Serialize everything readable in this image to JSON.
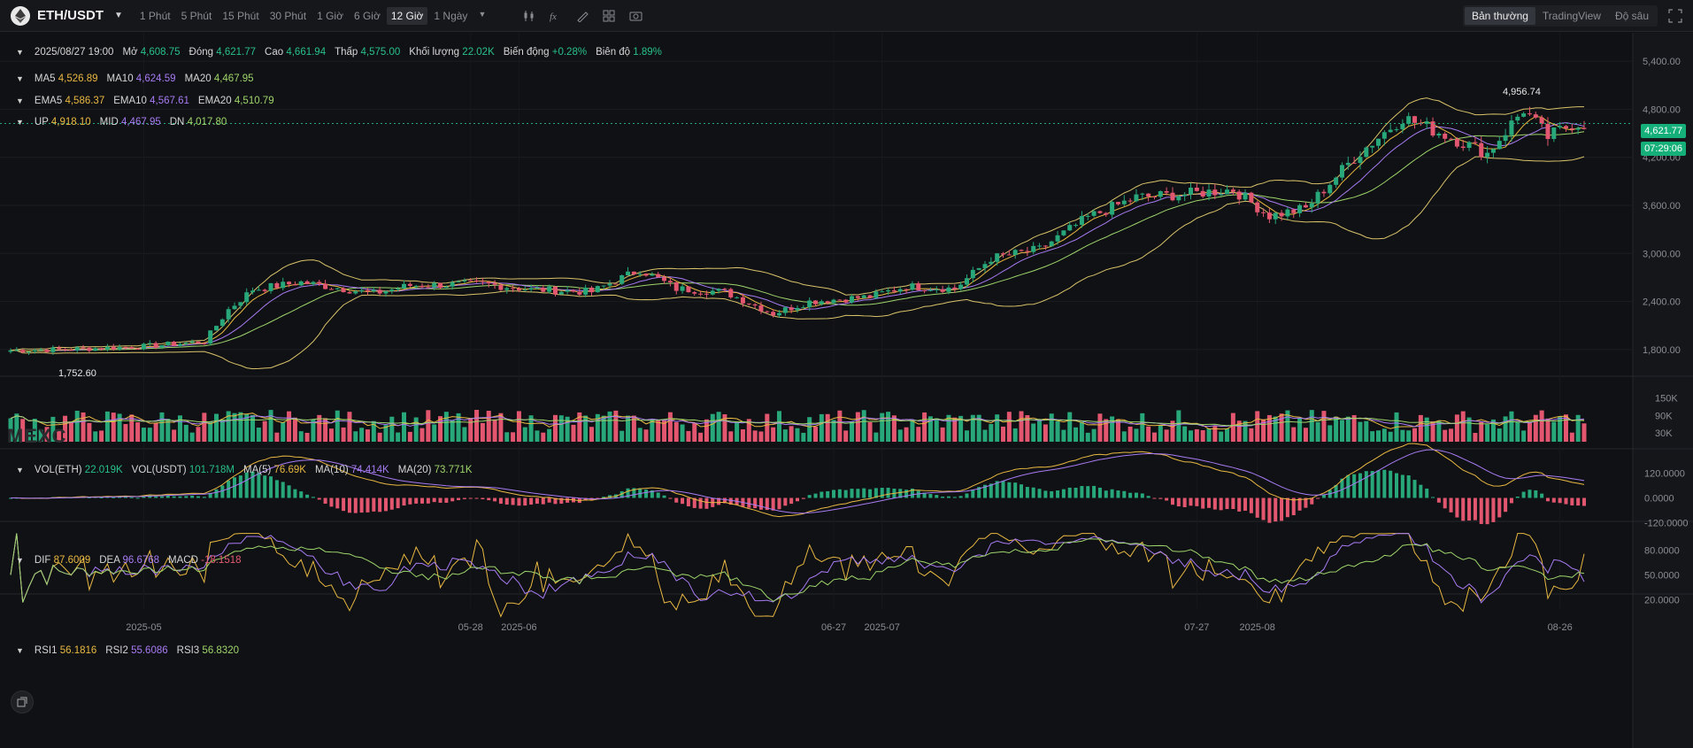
{
  "header": {
    "symbol": "ETH/USDT",
    "intervals": [
      "1 Phút",
      "5 Phút",
      "15 Phút",
      "30 Phút",
      "1 Giờ",
      "6 Giờ",
      "12 Giờ",
      "1 Ngày"
    ],
    "active_interval": "12 Giờ",
    "modes": [
      "Bản thường",
      "TradingView",
      "Độ sâu"
    ],
    "active_mode": "Bản thường"
  },
  "ohlc": {
    "date": "2025/08/27 19:00",
    "open_label": "Mở",
    "open": "4,608.75",
    "close_label": "Đóng",
    "close": "4,621.77",
    "high_label": "Cao",
    "high": "4,661.94",
    "low_label": "Thấp",
    "low": "4,575.00",
    "vol_label": "Khối lượng",
    "vol": "22.02K",
    "change_label": "Biến động",
    "change": "+0.28%",
    "amp_label": "Biên độ",
    "amp": "1.89%"
  },
  "ma": {
    "ma5_label": "MA5",
    "ma5": "4,526.89",
    "ma10_label": "MA10",
    "ma10": "4,624.59",
    "ma20_label": "MA20",
    "ma20": "4,467.95"
  },
  "ema": {
    "ema5_label": "EMA5",
    "ema5": "4,586.37",
    "ema10_label": "EMA10",
    "ema10": "4,567.61",
    "ema20_label": "EMA20",
    "ema20": "4,510.79"
  },
  "boll": {
    "up_label": "UP",
    "up": "4,918.10",
    "mid_label": "MID",
    "mid": "4,467.95",
    "dn_label": "DN",
    "dn": "4,017.80"
  },
  "price_axis": [
    "5,400.00",
    "4,800.00",
    "4,200.00",
    "3,600.00",
    "3,000.00",
    "2,400.00",
    "1,800.00"
  ],
  "current_price": "4,621.77",
  "countdown": "07:29:06",
  "high_mark": "4,956.74",
  "low_mark": "1,752.60",
  "watermark": "MEXC",
  "volume": {
    "vol_eth_label": "VOL(ETH)",
    "vol_eth": "22.019K",
    "vol_usdt_label": "VOL(USDT)",
    "vol_usdt": "101.718M",
    "ma5_label": "MA(5)",
    "ma5": "76.69K",
    "ma10_label": "MA(10)",
    "ma10": "74.414K",
    "ma20_label": "MA(20)",
    "ma20": "73.771K",
    "axis": [
      "150K",
      "90K",
      "30K"
    ]
  },
  "macd": {
    "dif_label": "DIF",
    "dif": "87.6009",
    "dea_label": "DEA",
    "dea": "96.6768",
    "macd_label": "MACD",
    "macd": "-18.1518",
    "axis": [
      "120.0000",
      "0.0000",
      "-120.0000"
    ]
  },
  "rsi": {
    "rsi1_label": "RSI1",
    "rsi1": "56.1816",
    "rsi2_label": "RSI2",
    "rsi2": "55.6086",
    "rsi3_label": "RSI3",
    "rsi3": "56.8320",
    "axis": [
      "80.0000",
      "50.0000",
      "20.0000"
    ]
  },
  "time_axis": [
    "2025-05",
    "05-28",
    "2025-06",
    "06-27",
    "2025-07",
    "07-27",
    "2025-08",
    "08-26"
  ],
  "colors": {
    "up": "#27a77a",
    "down": "#e2566f",
    "ma5": "#e8b842",
    "ma10": "#a77bf3",
    "ma20": "#9ed56b",
    "boll": "#d9c36a"
  },
  "chart_data": {
    "type": "candlestick",
    "price_range": [
      1500,
      5700
    ],
    "anchor_closes": [
      [
        "2025-04-20",
        1790
      ],
      [
        "2025-04-24",
        1800
      ],
      [
        "2025-05-01",
        1840
      ],
      [
        "2025-05-06",
        1900
      ],
      [
        "2025-05-08",
        2300
      ],
      [
        "2025-05-10",
        2550
      ],
      [
        "2025-05-14",
        2640
      ],
      [
        "2025-05-20",
        2500
      ],
      [
        "2025-05-23",
        2600
      ],
      [
        "2025-05-29",
        2620
      ],
      [
        "2025-06-02",
        2550
      ],
      [
        "2025-06-07",
        2520
      ],
      [
        "2025-06-11",
        2800
      ],
      [
        "2025-06-14",
        2560
      ],
      [
        "2025-06-18",
        2520
      ],
      [
        "2025-06-22",
        2250
      ],
      [
        "2025-06-25",
        2400
      ],
      [
        "2025-06-30",
        2460
      ],
      [
        "2025-07-03",
        2590
      ],
      [
        "2025-07-07",
        2560
      ],
      [
        "2025-07-10",
        2940
      ],
      [
        "2025-07-14",
        3050
      ],
      [
        "2025-07-18",
        3450
      ],
      [
        "2025-07-22",
        3700
      ],
      [
        "2025-07-26",
        3740
      ],
      [
        "2025-07-30",
        3800
      ],
      [
        "2025-08-02",
        3470
      ],
      [
        "2025-08-05",
        3560
      ],
      [
        "2025-08-09",
        4200
      ],
      [
        "2025-08-13",
        4700
      ],
      [
        "2025-08-17",
        4450
      ],
      [
        "2025-08-20",
        4250
      ],
      [
        "2025-08-23",
        4800
      ],
      [
        "2025-08-25",
        4450
      ],
      [
        "2025-08-27",
        4621
      ]
    ]
  }
}
